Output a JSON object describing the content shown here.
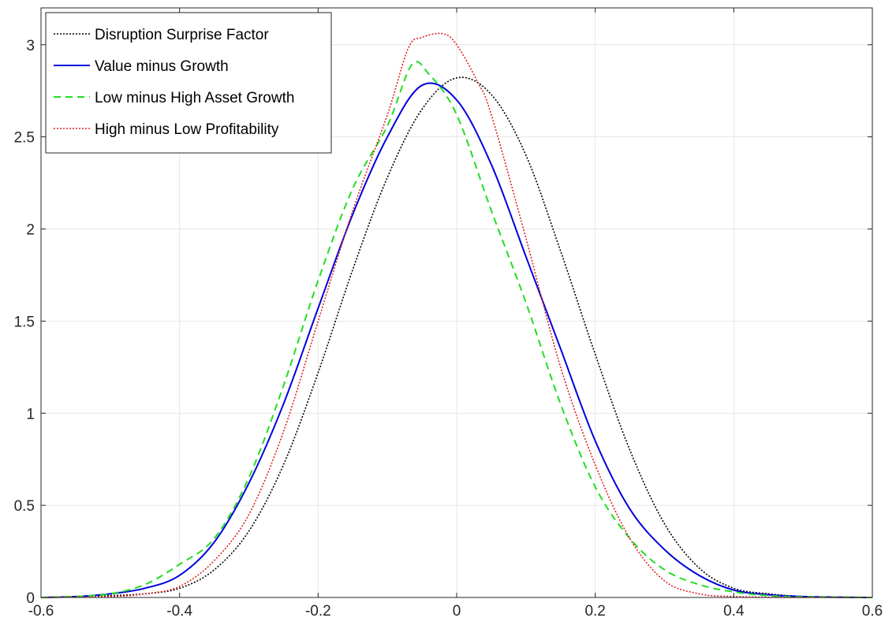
{
  "chart_data": {
    "type": "line",
    "title": "",
    "xlabel": "",
    "ylabel": "",
    "xlim": [
      -0.6,
      0.6
    ],
    "ylim": [
      0,
      3.2
    ],
    "xticks": [
      -0.6,
      -0.4,
      -0.2,
      0,
      0.2,
      0.4,
      0.6
    ],
    "xtick_labels": [
      "-0.6",
      "-0.4",
      "-0.2",
      "0",
      "0.2",
      "0.4",
      "0.6"
    ],
    "yticks": [
      0,
      0.5,
      1,
      1.5,
      2,
      2.5,
      3
    ],
    "ytick_labels": [
      "0",
      "0.5",
      "1",
      "1.5",
      "2",
      "2.5",
      "3"
    ],
    "grid": true,
    "legend_position": "top-left",
    "series": [
      {
        "name": "Disruption Surprise Factor",
        "color": "#000000",
        "style": "dotted",
        "points": [
          [
            -0.6,
            0.0
          ],
          [
            -0.55,
            0.005
          ],
          [
            -0.5,
            0.01
          ],
          [
            -0.45,
            0.02
          ],
          [
            -0.4,
            0.05
          ],
          [
            -0.35,
            0.15
          ],
          [
            -0.3,
            0.36
          ],
          [
            -0.25,
            0.72
          ],
          [
            -0.2,
            1.22
          ],
          [
            -0.15,
            1.78
          ],
          [
            -0.1,
            2.28
          ],
          [
            -0.05,
            2.65
          ],
          [
            0.0,
            2.82
          ],
          [
            0.05,
            2.73
          ],
          [
            0.1,
            2.4
          ],
          [
            0.15,
            1.88
          ],
          [
            0.2,
            1.32
          ],
          [
            0.25,
            0.8
          ],
          [
            0.3,
            0.4
          ],
          [
            0.35,
            0.16
          ],
          [
            0.4,
            0.05
          ],
          [
            0.45,
            0.02
          ],
          [
            0.5,
            0.005
          ],
          [
            0.55,
            0.0
          ],
          [
            0.6,
            0.0
          ]
        ]
      },
      {
        "name": "Value minus Growth",
        "color": "#0000dd",
        "style": "solid",
        "points": [
          [
            -0.6,
            0.0
          ],
          [
            -0.55,
            0.005
          ],
          [
            -0.5,
            0.02
          ],
          [
            -0.45,
            0.05
          ],
          [
            -0.4,
            0.12
          ],
          [
            -0.35,
            0.3
          ],
          [
            -0.3,
            0.62
          ],
          [
            -0.25,
            1.05
          ],
          [
            -0.2,
            1.57
          ],
          [
            -0.15,
            2.08
          ],
          [
            -0.1,
            2.5
          ],
          [
            -0.05,
            2.78
          ],
          [
            0.0,
            2.7
          ],
          [
            0.05,
            2.35
          ],
          [
            0.1,
            1.85
          ],
          [
            0.15,
            1.35
          ],
          [
            0.2,
            0.85
          ],
          [
            0.25,
            0.48
          ],
          [
            0.3,
            0.26
          ],
          [
            0.35,
            0.12
          ],
          [
            0.4,
            0.04
          ],
          [
            0.45,
            0.015
          ],
          [
            0.5,
            0.005
          ],
          [
            0.6,
            0.0
          ]
        ]
      },
      {
        "name": "Low minus High Asset Growth",
        "color": "#22dd22",
        "style": "dashed",
        "points": [
          [
            -0.6,
            0.0
          ],
          [
            -0.55,
            0.005
          ],
          [
            -0.5,
            0.02
          ],
          [
            -0.45,
            0.07
          ],
          [
            -0.4,
            0.18
          ],
          [
            -0.35,
            0.32
          ],
          [
            -0.3,
            0.65
          ],
          [
            -0.25,
            1.15
          ],
          [
            -0.2,
            1.72
          ],
          [
            -0.15,
            2.22
          ],
          [
            -0.1,
            2.56
          ],
          [
            -0.065,
            2.89
          ],
          [
            -0.04,
            2.84
          ],
          [
            0.0,
            2.62
          ],
          [
            0.05,
            2.1
          ],
          [
            0.1,
            1.6
          ],
          [
            0.15,
            1.05
          ],
          [
            0.2,
            0.6
          ],
          [
            0.25,
            0.32
          ],
          [
            0.3,
            0.15
          ],
          [
            0.35,
            0.07
          ],
          [
            0.4,
            0.03
          ],
          [
            0.45,
            0.01
          ],
          [
            0.5,
            0.003
          ],
          [
            0.6,
            0.0
          ]
        ]
      },
      {
        "name": "High minus Low Profitability",
        "color": "#dd2222",
        "style": "dotted",
        "points": [
          [
            -0.6,
            0.0
          ],
          [
            -0.5,
            0.005
          ],
          [
            -0.45,
            0.02
          ],
          [
            -0.4,
            0.06
          ],
          [
            -0.35,
            0.2
          ],
          [
            -0.3,
            0.45
          ],
          [
            -0.25,
            0.9
          ],
          [
            -0.2,
            1.5
          ],
          [
            -0.15,
            2.1
          ],
          [
            -0.1,
            2.62
          ],
          [
            -0.07,
            2.98
          ],
          [
            -0.05,
            3.04
          ],
          [
            -0.02,
            3.06
          ],
          [
            0.0,
            3.0
          ],
          [
            0.03,
            2.8
          ],
          [
            0.05,
            2.62
          ],
          [
            0.1,
            1.95
          ],
          [
            0.15,
            1.25
          ],
          [
            0.2,
            0.72
          ],
          [
            0.25,
            0.32
          ],
          [
            0.3,
            0.09
          ],
          [
            0.35,
            0.02
          ],
          [
            0.4,
            0.005
          ],
          [
            0.5,
            0.0
          ],
          [
            0.6,
            0.0
          ]
        ]
      }
    ]
  }
}
